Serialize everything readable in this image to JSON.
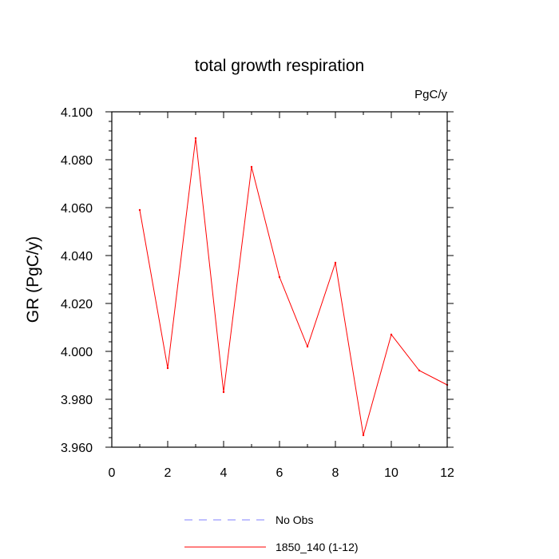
{
  "chart_data": {
    "type": "line",
    "title": "total growth respiration",
    "units_label": "PgC/y",
    "xlabel": "",
    "ylabel": "GR  (PgC/y)",
    "xlim": [
      0,
      12
    ],
    "ylim": [
      3.96,
      4.1
    ],
    "x_ticks": [
      0,
      2,
      4,
      6,
      8,
      10,
      12
    ],
    "x_tick_labels": [
      "0",
      "2",
      "4",
      "6",
      "8",
      "10",
      "12"
    ],
    "y_ticks": [
      3.96,
      3.98,
      4.0,
      4.02,
      4.04,
      4.06,
      4.08,
      4.1
    ],
    "y_tick_labels": [
      "3.960",
      "3.980",
      "4.000",
      "4.020",
      "4.040",
      "4.060",
      "4.080",
      "4.100"
    ],
    "grid": false,
    "legend_position": "bottom",
    "series": [
      {
        "name": "1850_140 (1-12)",
        "color": "#ff0000",
        "style": "solid",
        "x": [
          1,
          2,
          3,
          4,
          5,
          6,
          7,
          8,
          9,
          10,
          11,
          12
        ],
        "y": [
          4.059,
          3.993,
          4.089,
          3.983,
          4.077,
          4.031,
          4.002,
          4.037,
          3.965,
          4.007,
          3.992,
          3.986
        ]
      }
    ],
    "legend": [
      {
        "label": "No Obs",
        "color": "#8080ff",
        "style": "dashed"
      },
      {
        "label": "1850_140 (1-12)",
        "color": "#ff0000",
        "style": "solid"
      }
    ]
  }
}
